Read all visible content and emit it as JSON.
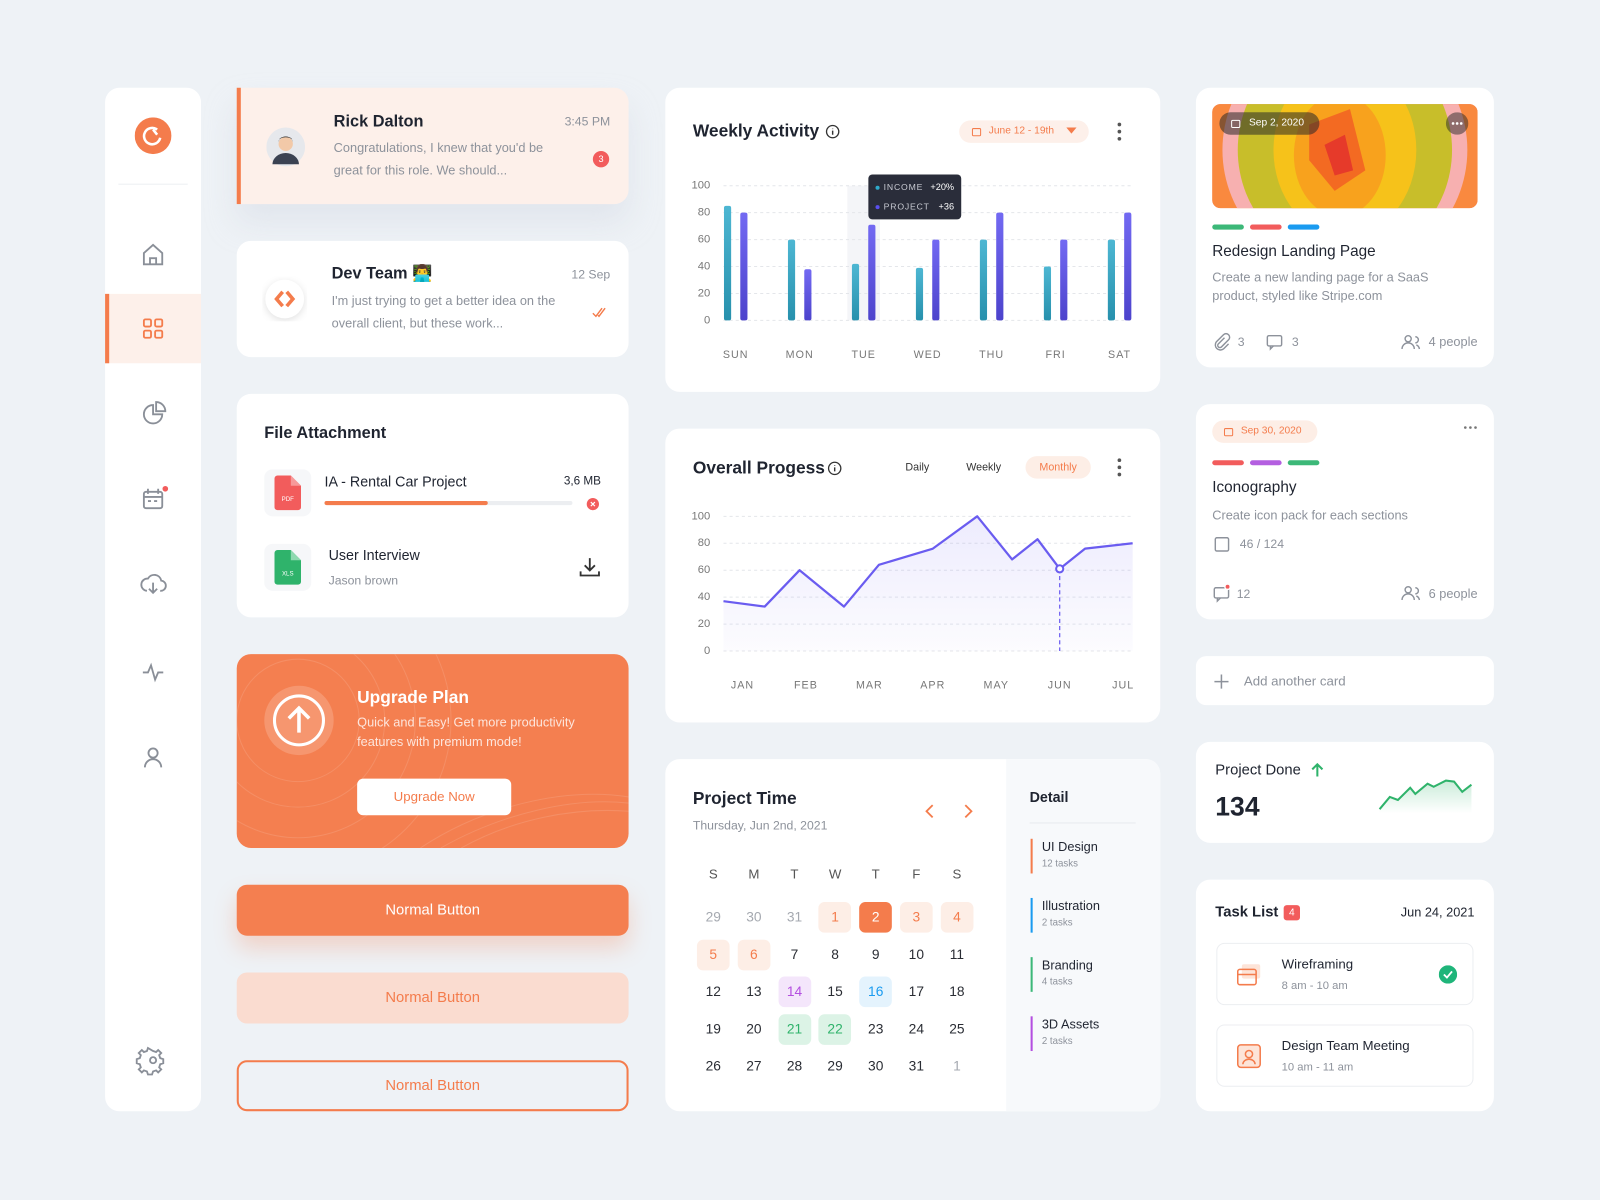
{
  "messages": [
    {
      "name": "Rick Dalton",
      "time": "3:45 PM",
      "text": "Congratulations, I knew that you'd be great for this role. We should...",
      "badge": "3"
    },
    {
      "name": "Dev Team 👨‍💻",
      "time": "12 Sep",
      "text": "I'm just trying to get a better idea on the overall client, but these work..."
    }
  ],
  "file_attachment": {
    "title": "File Attachment",
    "files": [
      {
        "name": "IA - Rental Car Project",
        "size": "3,6 MB",
        "type": "PDF",
        "progress": 66
      },
      {
        "name": "User Interview",
        "sub": "Jason brown",
        "type": "XLS"
      }
    ]
  },
  "upgrade": {
    "title": "Upgrade Plan",
    "text": "Quick and Easy! Get more productivity features with premium mode!",
    "button": "Upgrade Now"
  },
  "buttons": [
    "Normal Button",
    "Normal Button",
    "Normal Button"
  ],
  "chart_data": [
    {
      "type": "bar",
      "title": "Weekly Activity",
      "date_range": "June 12 - 19th",
      "categories": [
        "SUN",
        "MON",
        "TUE",
        "WED",
        "THU",
        "FRI",
        "SAT"
      ],
      "series": [
        {
          "name": "INCOME",
          "color": "#2eaacb",
          "values": [
            85,
            60,
            42,
            39,
            60,
            40,
            60
          ]
        },
        {
          "name": "PROJECT",
          "color": "#5a4ff0",
          "values": [
            80,
            38,
            71,
            60,
            80,
            60,
            80
          ]
        }
      ],
      "ylim": [
        0,
        100
      ],
      "yticks": [
        0,
        20,
        40,
        60,
        80,
        100
      ],
      "grid": true,
      "highlight": 2,
      "tooltip": {
        "values": [
          "+20%",
          "+36"
        ]
      }
    },
    {
      "type": "line",
      "title": "Overall Progess",
      "tabs": [
        "Daily",
        "Weekly",
        "Monthly"
      ],
      "active_tab": 2,
      "x": [
        -0.3,
        0.35,
        0.9,
        1.6,
        2.15,
        3,
        3.7,
        4.25,
        4.65,
        5,
        5.4,
        6.15
      ],
      "series": [
        {
          "color": "#6a5cf0",
          "values": [
            37,
            33,
            60,
            33,
            64,
            76,
            100,
            68,
            83,
            61,
            76,
            80
          ]
        }
      ],
      "xlim": [
        -0.3,
        6.15
      ],
      "xticks": [
        {
          "value": 0,
          "label": "JAN"
        },
        {
          "value": 1,
          "label": "FEB"
        },
        {
          "value": 2,
          "label": "MAR"
        },
        {
          "value": 3,
          "label": "APR"
        },
        {
          "value": 4,
          "label": "MAY"
        },
        {
          "value": 5,
          "label": "JUN"
        },
        {
          "value": 6,
          "label": "JUL"
        }
      ],
      "ylim": [
        0,
        100
      ],
      "yticks": [
        0,
        20,
        40,
        60,
        80,
        100
      ],
      "grid": true,
      "highlight": 9
    }
  ],
  "calendar": {
    "title": "Project Time",
    "date": "Thursday, Jun 2nd, 2021",
    "weekdays": [
      "S",
      "M",
      "T",
      "W",
      "T",
      "F",
      "S"
    ],
    "days": [
      {
        "text": "29",
        "color": "#a5a9b0"
      },
      {
        "text": "30",
        "color": "#a5a9b0"
      },
      {
        "text": "31",
        "color": "#a5a9b0"
      },
      {
        "text": "1",
        "color": "#f47c4c",
        "bg": "#fdeee6"
      },
      {
        "text": "2",
        "color": "#ffffff",
        "bg": "#f47c4c"
      },
      {
        "text": "3",
        "color": "#f47c4c",
        "bg": "#fdeee6"
      },
      {
        "text": "4",
        "color": "#f47c4c",
        "bg": "#fdeee6"
      },
      {
        "text": "5",
        "color": "#f47c4c",
        "bg": "#fdeee6"
      },
      {
        "text": "6",
        "color": "#f47c4c",
        "bg": "#fdeee6"
      },
      {
        "text": "7"
      },
      {
        "text": "8"
      },
      {
        "text": "9"
      },
      {
        "text": "10"
      },
      {
        "text": "11"
      },
      {
        "text": "12"
      },
      {
        "text": "13"
      },
      {
        "text": "14",
        "color": "#b44fe0",
        "bg": "#f4e6fb"
      },
      {
        "text": "15"
      },
      {
        "text": "16",
        "color": "#1a9bf0",
        "bg": "#e4f3fd"
      },
      {
        "text": "17"
      },
      {
        "text": "18"
      },
      {
        "text": "19"
      },
      {
        "text": "20"
      },
      {
        "text": "21",
        "color": "#2fb36b",
        "bg": "#dcf3e6"
      },
      {
        "text": "22",
        "color": "#2fb36b",
        "bg": "#dcf3e6"
      },
      {
        "text": "23"
      },
      {
        "text": "24"
      },
      {
        "text": "25"
      },
      {
        "text": "26"
      },
      {
        "text": "27"
      },
      {
        "text": "28"
      },
      {
        "text": "29"
      },
      {
        "text": "30"
      },
      {
        "text": "31"
      },
      {
        "text": "1",
        "color": "#a5a9b0"
      }
    ],
    "detail": {
      "title": "Detail",
      "items": [
        {
          "name": "UI Design",
          "tasks": "12 tasks",
          "color": "#f47c4c"
        },
        {
          "name": "Illustration",
          "tasks": "2 tasks",
          "color": "#1a9bf0"
        },
        {
          "name": "Branding",
          "tasks": "4 tasks",
          "color": "#3cb878"
        },
        {
          "name": "3D Assets",
          "tasks": "2 tasks",
          "color": "#b44fe0"
        }
      ]
    }
  },
  "cards": [
    {
      "date": "Sep 2, 2020",
      "tags": [
        "#3cb878",
        "#f25c5c",
        "#1a9bf0"
      ],
      "title": "Redesign Landing Page",
      "text": "Create a new landing page for a SaaS product, styled like Stripe.com",
      "attachments": "3",
      "comments": "3",
      "people": "4 people"
    },
    {
      "date": "Sep 30, 2020",
      "tags": [
        "#f25c5c",
        "#b45fe0",
        "#3cb878"
      ],
      "title": "Iconography",
      "text": "Create icon pack for each sections",
      "checklist": "46 / 124",
      "comments": "12",
      "people": "6 people"
    }
  ],
  "add_card": "Add another card",
  "project_done": {
    "title": "Project Done",
    "value": "134"
  },
  "task_list": {
    "title": "Task List",
    "badge": "4",
    "date": "Jun 24, 2021",
    "tasks": [
      {
        "name": "Wireframing",
        "time": "8 am - 10 am",
        "done": true
      },
      {
        "name": "Design Team Meeting",
        "time": "10 am - 11 am",
        "done": false
      }
    ]
  }
}
